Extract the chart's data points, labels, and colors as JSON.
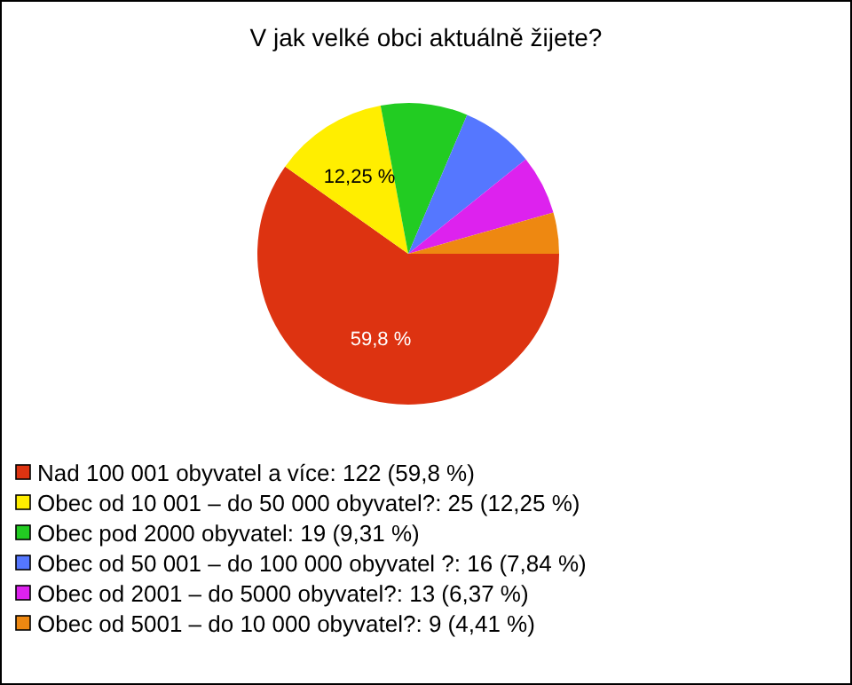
{
  "chart_data": {
    "type": "pie",
    "title": "V jak velké obci aktuálně žijete?",
    "categories": [
      "Nad 100 001 obyvatel a více: 122 (59,8 %)",
      "Obec od 10 001 – do 50 000 obyvatel?: 25 (12,25 %)",
      "Obec pod 2000 obyvatel: 19 (9,31 %)",
      "Obec od 50 001 – do 100 000 obyvatel ?: 16 (7,84 %)",
      "Obec od 2001 – do 5000 obyvatel?: 13 (6,37 %)",
      "Obec od 5001 – do 10 000 obyvatel?: 9 (4,41 %)"
    ],
    "values": [
      59.8,
      12.25,
      9.31,
      7.84,
      6.37,
      4.41
    ],
    "colors": [
      "#dd3311",
      "#ffee00",
      "#22cc22",
      "#5577ff",
      "#dd22ee",
      "#ee8811"
    ],
    "value_labels": [
      "59,8 %",
      "12,25 %",
      null,
      null,
      null,
      null
    ],
    "legend": "bottom left"
  }
}
